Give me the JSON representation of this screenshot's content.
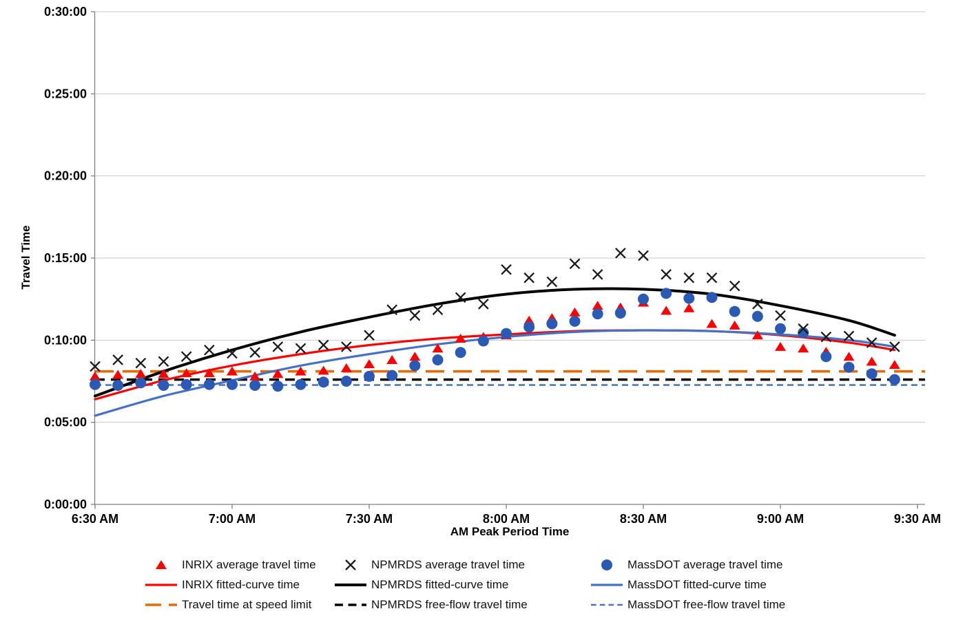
{
  "chart_data": {
    "type": "scatter",
    "title": "",
    "xlabel": "AM Peak Period Time",
    "ylabel": "Travel Time",
    "value_unit": "minutes of travel time (y axis shown as h:mm:ss)",
    "grid": "horizontal-only",
    "legend_position": "bottom",
    "y_axis": {
      "tick_labels": [
        "0:00:00",
        "0:05:00",
        "0:10:00",
        "0:15:00",
        "0:20:00",
        "0:25:00",
        "0:30:00"
      ],
      "tick_values_minutes": [
        0,
        5,
        10,
        15,
        20,
        25,
        30
      ],
      "min_minutes": 0,
      "max_minutes": 30
    },
    "x_axis": {
      "tick_labels": [
        "6:30 AM",
        "7:00 AM",
        "7:30 AM",
        "8:00 AM",
        "8:30 AM",
        "9:00 AM",
        "9:30 AM"
      ],
      "tick_minutes_after_630": [
        0,
        30,
        60,
        90,
        120,
        150,
        180
      ]
    },
    "scatter_minutes_after_630": [
      0,
      5,
      10,
      15,
      20,
      25,
      30,
      35,
      40,
      45,
      50,
      55,
      60,
      65,
      70,
      75,
      80,
      85,
      90,
      95,
      100,
      105,
      110,
      115,
      120,
      125,
      130,
      135,
      140,
      145,
      150,
      155,
      160,
      165,
      170,
      175
    ],
    "series": [
      {
        "id": "inrix_avg",
        "name": "INRIX average travel time",
        "kind": "scatter",
        "marker": "triangle",
        "color": "#FF0000",
        "values": [
          7.8,
          7.9,
          7.95,
          7.95,
          8.0,
          8.0,
          8.1,
          7.8,
          7.95,
          8.1,
          8.15,
          8.3,
          8.55,
          8.8,
          9.0,
          9.5,
          10.1,
          10.2,
          10.3,
          11.2,
          11.35,
          11.7,
          12.1,
          12.0,
          12.3,
          11.8,
          11.95,
          11.0,
          10.9,
          10.3,
          9.6,
          9.5,
          9.3,
          9.0,
          8.7,
          8.5
        ]
      },
      {
        "id": "npmrds_avg",
        "name": "NPMRDS average travel time",
        "kind": "scatter",
        "marker": "x",
        "color": "#1A1A1A",
        "values": [
          8.4,
          8.8,
          8.6,
          8.7,
          9.0,
          9.4,
          9.2,
          9.25,
          9.6,
          9.5,
          9.7,
          9.6,
          10.3,
          11.85,
          11.5,
          11.85,
          12.6,
          12.2,
          14.3,
          13.8,
          13.55,
          14.65,
          14.0,
          15.3,
          15.15,
          14.0,
          13.8,
          13.8,
          13.3,
          12.2,
          11.5,
          10.7,
          10.2,
          10.25,
          9.85,
          9.6
        ]
      },
      {
        "id": "massdot_avg",
        "name": "MassDOT average travel time",
        "kind": "scatter",
        "marker": "circle",
        "color": "#2B5AB5",
        "values": [
          7.3,
          7.25,
          7.4,
          7.25,
          7.3,
          7.3,
          7.3,
          7.25,
          7.2,
          7.3,
          7.45,
          7.5,
          7.8,
          7.85,
          8.45,
          8.8,
          9.25,
          9.95,
          10.4,
          10.8,
          11.0,
          11.15,
          11.6,
          11.65,
          12.5,
          12.85,
          12.55,
          12.6,
          11.75,
          11.45,
          10.7,
          10.45,
          9.0,
          8.35,
          7.95,
          7.6
        ]
      },
      {
        "id": "inrix_fit",
        "name": "INRIX fitted-curve time",
        "kind": "curve",
        "color": "#FF0000",
        "width": 3.2,
        "t": [
          0,
          15,
          30,
          45,
          60,
          75,
          90,
          105,
          120,
          135,
          150,
          165,
          175
        ],
        "v": [
          6.4,
          7.55,
          8.45,
          9.15,
          9.7,
          10.1,
          10.35,
          10.55,
          10.6,
          10.55,
          10.3,
          9.85,
          9.4
        ]
      },
      {
        "id": "npmrds_fit",
        "name": "NPMRDS fitted-curve time",
        "kind": "curve",
        "color": "#000000",
        "width": 4,
        "t": [
          0,
          15,
          30,
          45,
          60,
          75,
          90,
          105,
          120,
          135,
          150,
          165,
          175
        ],
        "v": [
          6.6,
          8.1,
          9.4,
          10.5,
          11.4,
          12.2,
          12.8,
          13.1,
          13.1,
          12.8,
          12.1,
          11.2,
          10.3
        ]
      },
      {
        "id": "massdot_fit",
        "name": "MassDOT fitted-curve time",
        "kind": "curve",
        "color": "#4472C4",
        "width": 3.2,
        "t": [
          0,
          15,
          30,
          45,
          60,
          75,
          90,
          105,
          120,
          135,
          150,
          165,
          175
        ],
        "v": [
          5.4,
          6.6,
          7.55,
          8.45,
          9.15,
          9.75,
          10.2,
          10.5,
          10.6,
          10.55,
          10.35,
          10.0,
          9.6
        ]
      },
      {
        "id": "speed_limit",
        "name": "Travel time at speed limit",
        "kind": "hline",
        "color": "#E36C0A",
        "value": 8.1,
        "dash": [
          27,
          13
        ],
        "width": 3.6
      },
      {
        "id": "npmrds_ff",
        "name": "NPMRDS free-flow travel time",
        "kind": "hline",
        "color": "#000000",
        "value": 7.6,
        "dash": [
          14,
          9
        ],
        "width": 3.6
      },
      {
        "id": "massdot_ff",
        "name": "MassDOT free-flow travel time",
        "kind": "hline",
        "color": "#4472C4",
        "value": 7.27,
        "dash": [
          9,
          6
        ],
        "width": 2.6
      }
    ],
    "legend_order_row_major": [
      "inrix_avg",
      "npmrds_avg",
      "massdot_avg",
      "inrix_fit",
      "npmrds_fit",
      "massdot_fit",
      "speed_limit",
      "npmrds_ff",
      "massdot_ff"
    ]
  },
  "colors": {
    "gridline": "#C8C8C8",
    "axis_line": "#808080",
    "tick_text": "#000000"
  }
}
